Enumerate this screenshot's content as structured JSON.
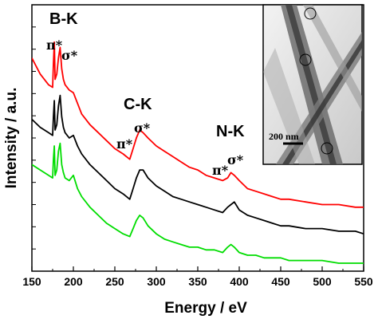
{
  "chart_data": {
    "type": "line",
    "xlabel": "Energy / eV",
    "ylabel": "Intensity / a.u.",
    "xlim": [
      150,
      550
    ],
    "x_ticks": [
      150,
      200,
      250,
      300,
      350,
      400,
      450,
      500,
      550
    ],
    "y_ticks_labeled": false,
    "grid": false,
    "legend": "none",
    "series": [
      {
        "color": "#ff0000",
        "x": [
          150,
          160,
          170,
          175,
          176,
          177,
          178,
          180,
          182,
          184,
          186,
          188,
          190,
          195,
          200,
          205,
          210,
          220,
          230,
          240,
          250,
          260,
          268,
          272,
          276,
          280,
          284,
          290,
          300,
          310,
          320,
          330,
          340,
          350,
          360,
          370,
          380,
          386,
          390,
          394,
          400,
          410,
          420,
          430,
          440,
          450,
          460,
          480,
          500,
          520,
          540,
          550
        ],
        "y": [
          0.8,
          0.74,
          0.7,
          0.69,
          0.78,
          0.86,
          0.72,
          0.74,
          0.8,
          0.84,
          0.76,
          0.72,
          0.7,
          0.68,
          0.67,
          0.63,
          0.59,
          0.55,
          0.52,
          0.49,
          0.46,
          0.44,
          0.42,
          0.46,
          0.5,
          0.53,
          0.52,
          0.5,
          0.47,
          0.45,
          0.43,
          0.41,
          0.39,
          0.38,
          0.36,
          0.35,
          0.34,
          0.35,
          0.37,
          0.36,
          0.34,
          0.31,
          0.3,
          0.29,
          0.28,
          0.27,
          0.27,
          0.26,
          0.25,
          0.25,
          0.24,
          0.24
        ]
      },
      {
        "color": "#000000",
        "x": [
          150,
          160,
          170,
          175,
          176,
          177,
          178,
          180,
          182,
          184,
          186,
          188,
          190,
          195,
          200,
          205,
          210,
          220,
          230,
          240,
          250,
          260,
          268,
          272,
          276,
          280,
          284,
          290,
          300,
          310,
          320,
          330,
          340,
          350,
          360,
          370,
          380,
          386,
          390,
          394,
          400,
          410,
          420,
          430,
          440,
          450,
          460,
          480,
          500,
          520,
          540,
          550
        ],
        "y": [
          0.57,
          0.54,
          0.52,
          0.51,
          0.58,
          0.64,
          0.53,
          0.55,
          0.62,
          0.66,
          0.58,
          0.54,
          0.52,
          0.5,
          0.51,
          0.47,
          0.44,
          0.4,
          0.37,
          0.34,
          0.31,
          0.29,
          0.27,
          0.31,
          0.35,
          0.38,
          0.38,
          0.35,
          0.32,
          0.3,
          0.28,
          0.27,
          0.26,
          0.25,
          0.24,
          0.23,
          0.22,
          0.24,
          0.25,
          0.26,
          0.23,
          0.21,
          0.2,
          0.19,
          0.18,
          0.17,
          0.17,
          0.16,
          0.16,
          0.15,
          0.15,
          0.14
        ]
      },
      {
        "color": "#00dd00",
        "x": [
          150,
          160,
          170,
          175,
          176,
          177,
          178,
          180,
          182,
          184,
          186,
          188,
          190,
          195,
          200,
          205,
          210,
          220,
          230,
          240,
          250,
          260,
          268,
          272,
          276,
          280,
          284,
          290,
          300,
          310,
          320,
          330,
          340,
          350,
          360,
          370,
          380,
          386,
          390,
          394,
          400,
          410,
          420,
          430,
          440,
          450,
          460,
          480,
          500,
          520,
          540,
          550
        ],
        "y": [
          0.4,
          0.38,
          0.36,
          0.35,
          0.42,
          0.47,
          0.36,
          0.38,
          0.45,
          0.48,
          0.4,
          0.37,
          0.35,
          0.34,
          0.36,
          0.31,
          0.28,
          0.24,
          0.21,
          0.18,
          0.16,
          0.14,
          0.13,
          0.16,
          0.19,
          0.21,
          0.2,
          0.17,
          0.14,
          0.12,
          0.11,
          0.1,
          0.09,
          0.09,
          0.08,
          0.08,
          0.07,
          0.09,
          0.1,
          0.09,
          0.07,
          0.06,
          0.06,
          0.05,
          0.05,
          0.05,
          0.04,
          0.04,
          0.04,
          0.03,
          0.03,
          0.03
        ]
      }
    ],
    "annotations": {
      "bk_label": "B-K",
      "ck_label": "C-K",
      "nk_label": "N-K",
      "pi_star": "π*",
      "sigma_star": "σ*"
    },
    "inset": {
      "scale_bar_label": "200 nm"
    }
  }
}
